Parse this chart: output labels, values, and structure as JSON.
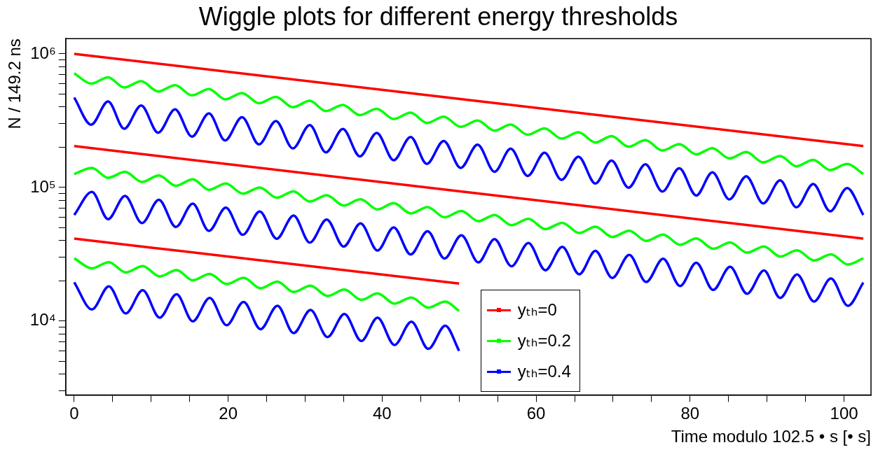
{
  "chart_data": {
    "type": "line",
    "title": "Wiggle plots for different energy thresholds",
    "xlabel": "Time modulo 102.5 • s [• s]",
    "ylabel": "N / 149.2 ns",
    "log": "y",
    "grid": false,
    "legend": "bottom",
    "xlim": [
      -1.1,
      103.5
    ],
    "xticks": [
      0,
      {
        "value": 5,
        "label": null
      },
      {
        "value": 10,
        "label": null
      },
      {
        "value": 15,
        "label": null
      },
      20,
      {
        "value": 25,
        "label": null
      },
      {
        "value": 30,
        "label": null
      },
      {
        "value": 35,
        "label": null
      },
      40,
      {
        "value": 45,
        "label": null
      },
      {
        "value": 50,
        "label": null
      },
      {
        "value": 55,
        "label": null
      },
      60,
      {
        "value": 65,
        "label": null
      },
      {
        "value": 70,
        "label": null
      },
      {
        "value": 75,
        "label": null
      },
      80,
      {
        "value": 85,
        "label": null
      },
      {
        "value": 90,
        "label": null
      },
      {
        "value": 95,
        "label": null
      },
      100
    ],
    "ylim": [
      2800,
      1300000
    ],
    "yticks": [
      {
        "value": 3000,
        "label": null
      },
      {
        "value": 4000,
        "label": null
      },
      {
        "value": 5000,
        "label": null
      },
      {
        "value": 6000,
        "label": null
      },
      {
        "value": 7000,
        "label": null
      },
      {
        "value": 8000,
        "label": null
      },
      {
        "value": 9000,
        "label": null
      },
      {
        "value": 10000,
        "label": "10⁴"
      },
      {
        "value": 20000,
        "label": null
      },
      {
        "value": 30000,
        "label": null
      },
      {
        "value": 40000,
        "label": null
      },
      {
        "value": 50000,
        "label": null
      },
      {
        "value": 60000,
        "label": null
      },
      {
        "value": 70000,
        "label": null
      },
      {
        "value": 80000,
        "label": null
      },
      {
        "value": 90000,
        "label": null
      },
      {
        "value": 100000,
        "label": "10⁵"
      },
      {
        "value": 200000,
        "label": null
      },
      {
        "value": 300000,
        "label": null
      },
      {
        "value": 400000,
        "label": null
      },
      {
        "value": 500000,
        "label": null
      },
      {
        "value": 600000,
        "label": null
      },
      {
        "value": 700000,
        "label": null
      },
      {
        "value": 800000,
        "label": null
      },
      {
        "value": 900000,
        "label": null
      },
      {
        "value": 1000000,
        "label": "10⁶"
      }
    ],
    "series": [
      {
        "name": "yₜₕ=0",
        "color": "#ff0000",
        "x": [
          0,
          102.5
        ],
        "values": [
          1000000,
          204000
        ]
      },
      {
        "name": "yₜₕ=0.2",
        "color": "#00ff00",
        "x": [
          0,
          2.2,
          4.4,
          6.5,
          8.7,
          10.9,
          13.1,
          15.3,
          17.5,
          19.6,
          21.8,
          24,
          26.2,
          28.4,
          30.6,
          32.7,
          34.9,
          37.1,
          39.3,
          41.5,
          43.7,
          45.8,
          48,
          50.2,
          52.4,
          54.6,
          56.7,
          58.9,
          61.1,
          63.3,
          65.5,
          67.7,
          69.8,
          72,
          74.2,
          76.4,
          78.6,
          80.8,
          82.9,
          85.1,
          87.3,
          89.5,
          91.7,
          93.8,
          96,
          98.2,
          100.4,
          102.5
        ],
        "values": [
          715000,
          599000,
          668000,
          560000,
          624000,
          523000,
          583000,
          489000,
          545000,
          457000,
          509000,
          427000,
          476000,
          399000,
          445000,
          373000,
          415000,
          348000,
          388000,
          325000,
          363000,
          304000,
          339000,
          284000,
          317000,
          266000,
          296000,
          248000,
          277000,
          232000,
          259000,
          217000,
          242000,
          202000,
          226000,
          189000,
          211000,
          177000,
          197000,
          165000,
          184000,
          154000,
          172000,
          144000,
          161000,
          135000,
          150000,
          126000
        ]
      },
      {
        "name": "yₜₕ=0.4",
        "color": "#0000ff",
        "x": [
          0,
          2.2,
          4.4,
          6.5,
          8.7,
          10.9,
          13.1,
          15.3,
          17.5,
          19.6,
          21.8,
          24,
          26.2,
          28.4,
          30.6,
          32.7,
          34.9,
          37.1,
          39.3,
          41.5,
          43.7,
          45.8,
          48,
          50.2,
          52.4,
          54.6,
          56.7,
          58.9,
          61.1,
          63.3,
          65.5,
          67.7,
          69.8,
          72,
          74.2,
          76.4,
          78.6,
          80.8,
          82.9,
          85.1,
          87.3,
          89.5,
          91.7,
          93.8,
          96,
          98.2,
          100.4,
          102.5
        ],
        "values": [
          471000,
          295000,
          440000,
          275000,
          411000,
          257000,
          384000,
          240000,
          359000,
          225000,
          336000,
          210000,
          314000,
          196000,
          293000,
          183000,
          274000,
          171000,
          256000,
          160000,
          239000,
          150000,
          223000,
          140000,
          209000,
          131000,
          195000,
          122000,
          182000,
          114000,
          170000,
          107000,
          159000,
          99600,
          149000,
          93100,
          139000,
          87000,
          130000,
          81300,
          121000,
          76000,
          113000,
          71000,
          106000,
          66300,
          99100,
          62200
        ]
      },
      {
        "color": "#ff0000",
        "x": [
          0,
          102.5
        ],
        "values": [
          204000,
          41400
        ]
      },
      {
        "color": "#00ff00",
        "x": [
          0,
          2.3,
          4.4,
          6.6,
          8.8,
          11,
          13.2,
          15.4,
          17.5,
          19.7,
          21.9,
          24.1,
          26.3,
          28.5,
          30.6,
          32.8,
          35,
          37.2,
          39.4,
          41.5,
          43.7,
          45.9,
          48.1,
          50.3,
          52.5,
          54.6,
          56.8,
          59,
          61.2,
          63.4,
          65.6,
          67.7,
          69.9,
          72.1,
          74.3,
          76.5,
          78.7,
          80.8,
          83,
          85.2,
          87.4,
          89.6,
          91.7,
          93.9,
          96.1,
          98.3,
          100.5,
          102.5
        ],
        "values": [
          126000,
          140000,
          118000,
          131000,
          110000,
          123000,
          103000,
          115000,
          96100,
          107000,
          89800,
          100000,
          83900,
          93500,
          78400,
          87400,
          73300,
          81700,
          68400,
          76300,
          64000,
          71300,
          59800,
          66700,
          55900,
          62300,
          52200,
          58200,
          48800,
          54400,
          45600,
          50800,
          42600,
          47500,
          39800,
          44400,
          37200,
          41500,
          34800,
          38800,
          32500,
          36200,
          30400,
          33800,
          28400,
          31600,
          26500,
          29500
        ]
      },
      {
        "color": "#0000ff",
        "x": [
          0,
          2.3,
          4.4,
          6.6,
          8.8,
          11,
          13.2,
          15.4,
          17.5,
          19.7,
          21.9,
          24.1,
          26.3,
          28.5,
          30.6,
          32.8,
          35,
          37.2,
          39.4,
          41.5,
          43.7,
          45.9,
          48.1,
          50.3,
          52.5,
          54.6,
          56.8,
          59,
          61.2,
          63.4,
          65.6,
          67.7,
          69.9,
          72.1,
          74.3,
          76.5,
          78.7,
          80.8,
          83,
          85.2,
          87.4,
          89.6,
          91.7,
          93.9,
          96.1,
          98.3,
          100.5,
          102.5
        ],
        "values": [
          62200,
          92600,
          57900,
          86500,
          54100,
          80900,
          50600,
          75600,
          47300,
          70600,
          44200,
          66000,
          41300,
          61700,
          38600,
          57600,
          36100,
          53800,
          33700,
          50300,
          31500,
          47000,
          29400,
          43900,
          27500,
          41100,
          25700,
          38400,
          24000,
          35900,
          22400,
          33500,
          21000,
          31300,
          19600,
          29300,
          18300,
          27300,
          17100,
          25500,
          16000,
          23900,
          14900,
          22300,
          14000,
          20800,
          13000,
          19400
        ]
      },
      {
        "color": "#ff0000",
        "x": [
          0,
          50
        ],
        "values": [
          41400,
          19100
        ]
      },
      {
        "color": "#00ff00",
        "x": [
          0,
          2.3,
          4.5,
          6.7,
          8.9,
          11.1,
          13.3,
          15.4,
          17.6,
          19.8,
          22,
          24.2,
          26.4,
          28.5,
          30.7,
          32.9,
          35.1,
          37.3,
          39.4,
          41.6,
          43.8,
          46,
          48.2,
          50
        ],
        "values": [
          29500,
          24800,
          27600,
          23100,
          25800,
          21600,
          24100,
          20200,
          22500,
          18900,
          21100,
          17600,
          19700,
          16500,
          18400,
          15400,
          17200,
          14400,
          16100,
          13500,
          15000,
          12600,
          14000,
          11900
        ]
      },
      {
        "color": "#0000ff",
        "x": [
          0,
          2.3,
          4.5,
          6.7,
          8.9,
          11.1,
          13.3,
          15.4,
          17.6,
          19.8,
          22,
          24.2,
          26.4,
          28.5,
          30.7,
          32.9,
          35.1,
          37.3,
          39.4,
          41.6,
          43.8,
          46,
          48.2,
          50
        ],
        "values": [
          19500,
          12200,
          18200,
          11400,
          17000,
          10600,
          15900,
          9950,
          14900,
          9300,
          13900,
          8690,
          13000,
          8120,
          12100,
          7590,
          11300,
          7090,
          10600,
          6620,
          9890,
          6190,
          9240,
          5980
        ]
      }
    ]
  }
}
